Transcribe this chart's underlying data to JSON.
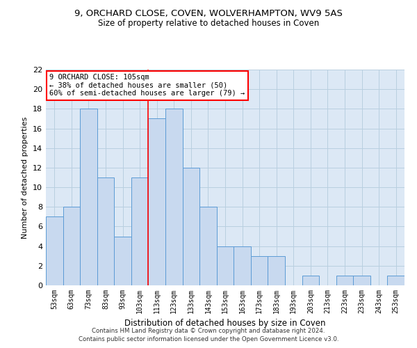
{
  "title1": "9, ORCHARD CLOSE, COVEN, WOLVERHAMPTON, WV9 5AS",
  "title2": "Size of property relative to detached houses in Coven",
  "xlabel": "Distribution of detached houses by size in Coven",
  "ylabel": "Number of detached properties",
  "bar_labels": [
    "53sqm",
    "63sqm",
    "73sqm",
    "83sqm",
    "93sqm",
    "103sqm",
    "113sqm",
    "123sqm",
    "133sqm",
    "143sqm",
    "153sqm",
    "163sqm",
    "173sqm",
    "183sqm",
    "193sqm",
    "203sqm",
    "213sqm",
    "223sqm",
    "233sqm",
    "243sqm",
    "253sqm"
  ],
  "bar_values": [
    7,
    8,
    18,
    11,
    5,
    11,
    17,
    18,
    12,
    8,
    4,
    4,
    3,
    3,
    0,
    1,
    0,
    1,
    1,
    0,
    1
  ],
  "bar_color": "#c8d9ef",
  "bar_edgecolor": "#5b9bd5",
  "bar_width": 1.0,
  "vline_x": 5.5,
  "vline_color": "red",
  "annotation_line1": "9 ORCHARD CLOSE: 105sqm",
  "annotation_line2": "← 38% of detached houses are smaller (50)",
  "annotation_line3": "60% of semi-detached houses are larger (79) →",
  "annotation_box_color": "white",
  "annotation_box_edgecolor": "red",
  "ylim": [
    0,
    22
  ],
  "yticks": [
    0,
    2,
    4,
    6,
    8,
    10,
    12,
    14,
    16,
    18,
    20,
    22
  ],
  "grid_color": "#b8cfe0",
  "footer1": "Contains HM Land Registry data © Crown copyright and database right 2024.",
  "footer2": "Contains public sector information licensed under the Open Government Licence v3.0.",
  "bg_color": "#dce8f5"
}
